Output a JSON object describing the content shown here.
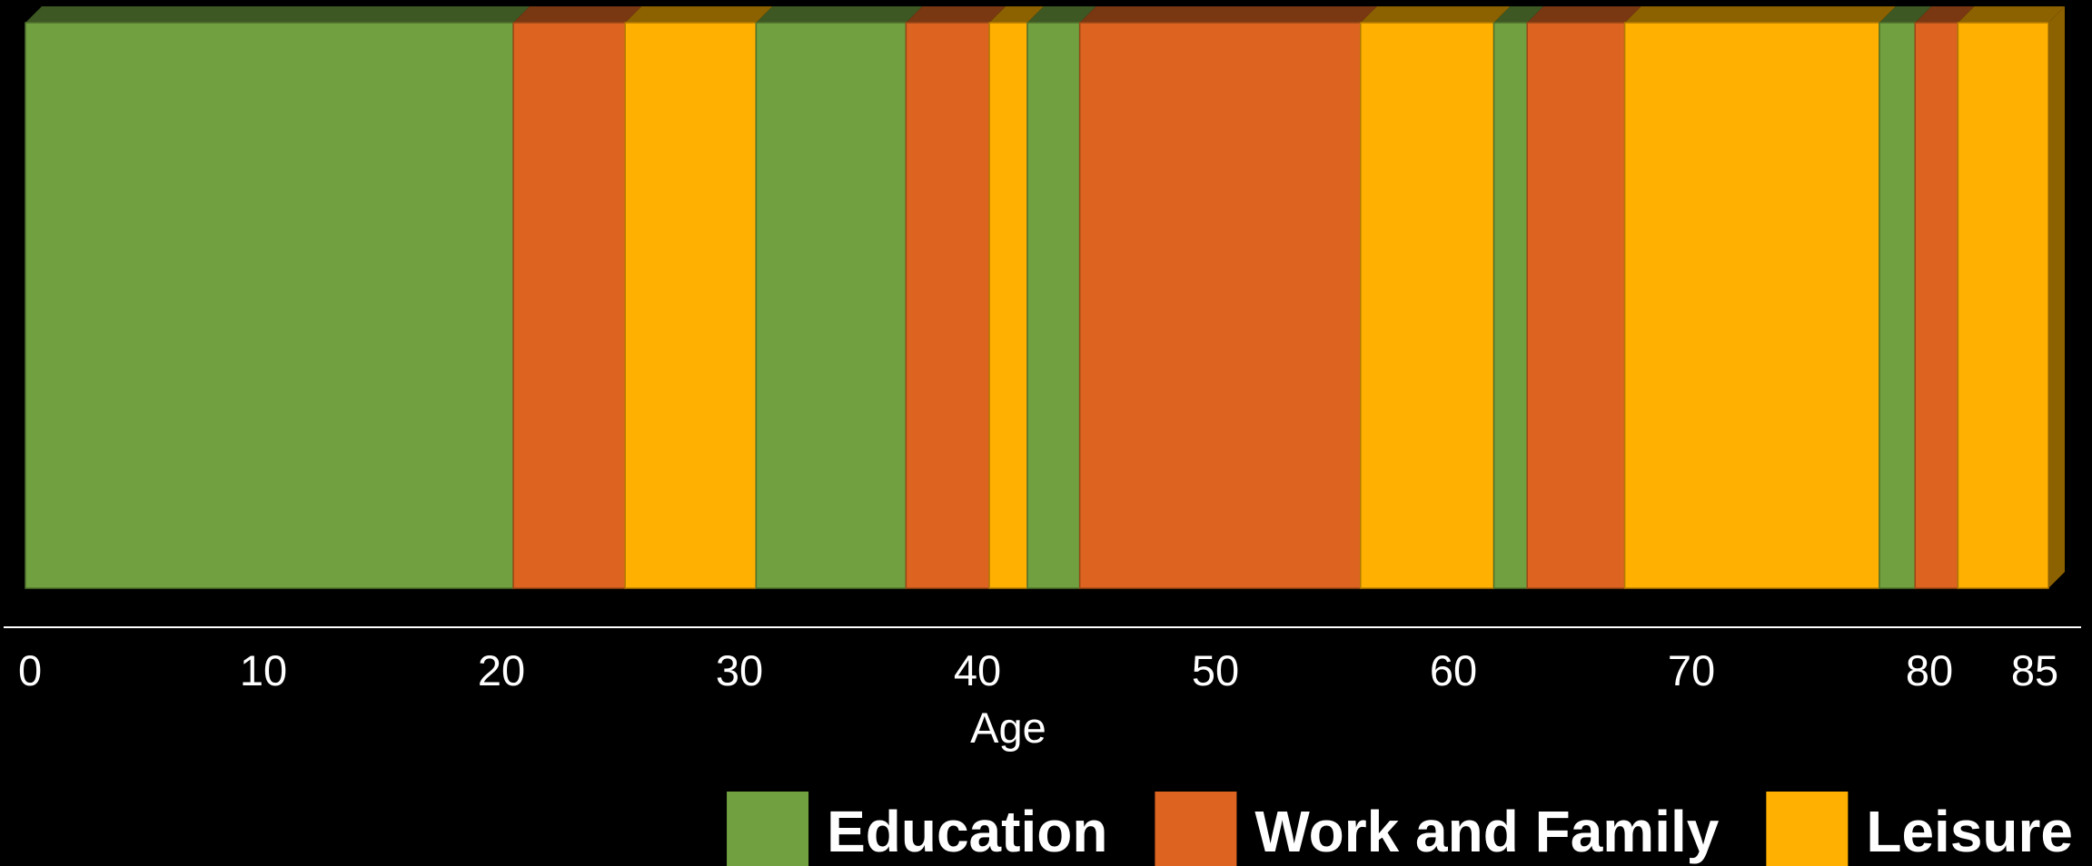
{
  "chart_data": {
    "type": "bar",
    "orientation": "horizontal-stacked",
    "style": "3d",
    "xlabel": "Age",
    "xlim": [
      0,
      85
    ],
    "ticks": [
      {
        "value": 0,
        "label": "0"
      },
      {
        "value": 10,
        "label": "10"
      },
      {
        "value": 20,
        "label": "20"
      },
      {
        "value": 30,
        "label": "30"
      },
      {
        "value": 40,
        "label": "40"
      },
      {
        "value": 50,
        "label": "50"
      },
      {
        "value": 60,
        "label": "60"
      },
      {
        "value": 70,
        "label": "70"
      },
      {
        "value": 80,
        "label": "80"
      },
      {
        "value": 85,
        "label": "85"
      }
    ],
    "legend_position": "bottom-right",
    "categories": [
      {
        "key": "education",
        "name": "Education",
        "color": "#70A03F"
      },
      {
        "key": "work",
        "name": "Work and Family",
        "color": "#DC6420"
      },
      {
        "key": "leisure",
        "name": "Leisure",
        "color": "#FFB000"
      }
    ],
    "segments": [
      {
        "category": "education",
        "start": 0,
        "end": 20.5
      },
      {
        "category": "work",
        "start": 20.5,
        "end": 25.2
      },
      {
        "category": "leisure",
        "start": 25.2,
        "end": 30.7
      },
      {
        "category": "education",
        "start": 30.7,
        "end": 37
      },
      {
        "category": "work",
        "start": 37,
        "end": 40.5
      },
      {
        "category": "leisure",
        "start": 40.5,
        "end": 42.1
      },
      {
        "category": "education",
        "start": 42.1,
        "end": 44.3
      },
      {
        "category": "work",
        "start": 44.3,
        "end": 56.1
      },
      {
        "category": "leisure",
        "start": 56.1,
        "end": 61.7
      },
      {
        "category": "education",
        "start": 61.7,
        "end": 63.1
      },
      {
        "category": "work",
        "start": 63.1,
        "end": 67.2
      },
      {
        "category": "leisure",
        "start": 67.2,
        "end": 77.9
      },
      {
        "category": "education",
        "start": 77.9,
        "end": 79.4
      },
      {
        "category": "work",
        "start": 79.4,
        "end": 81.2
      },
      {
        "category": "leisure",
        "start": 81.2,
        "end": 85
      }
    ]
  }
}
